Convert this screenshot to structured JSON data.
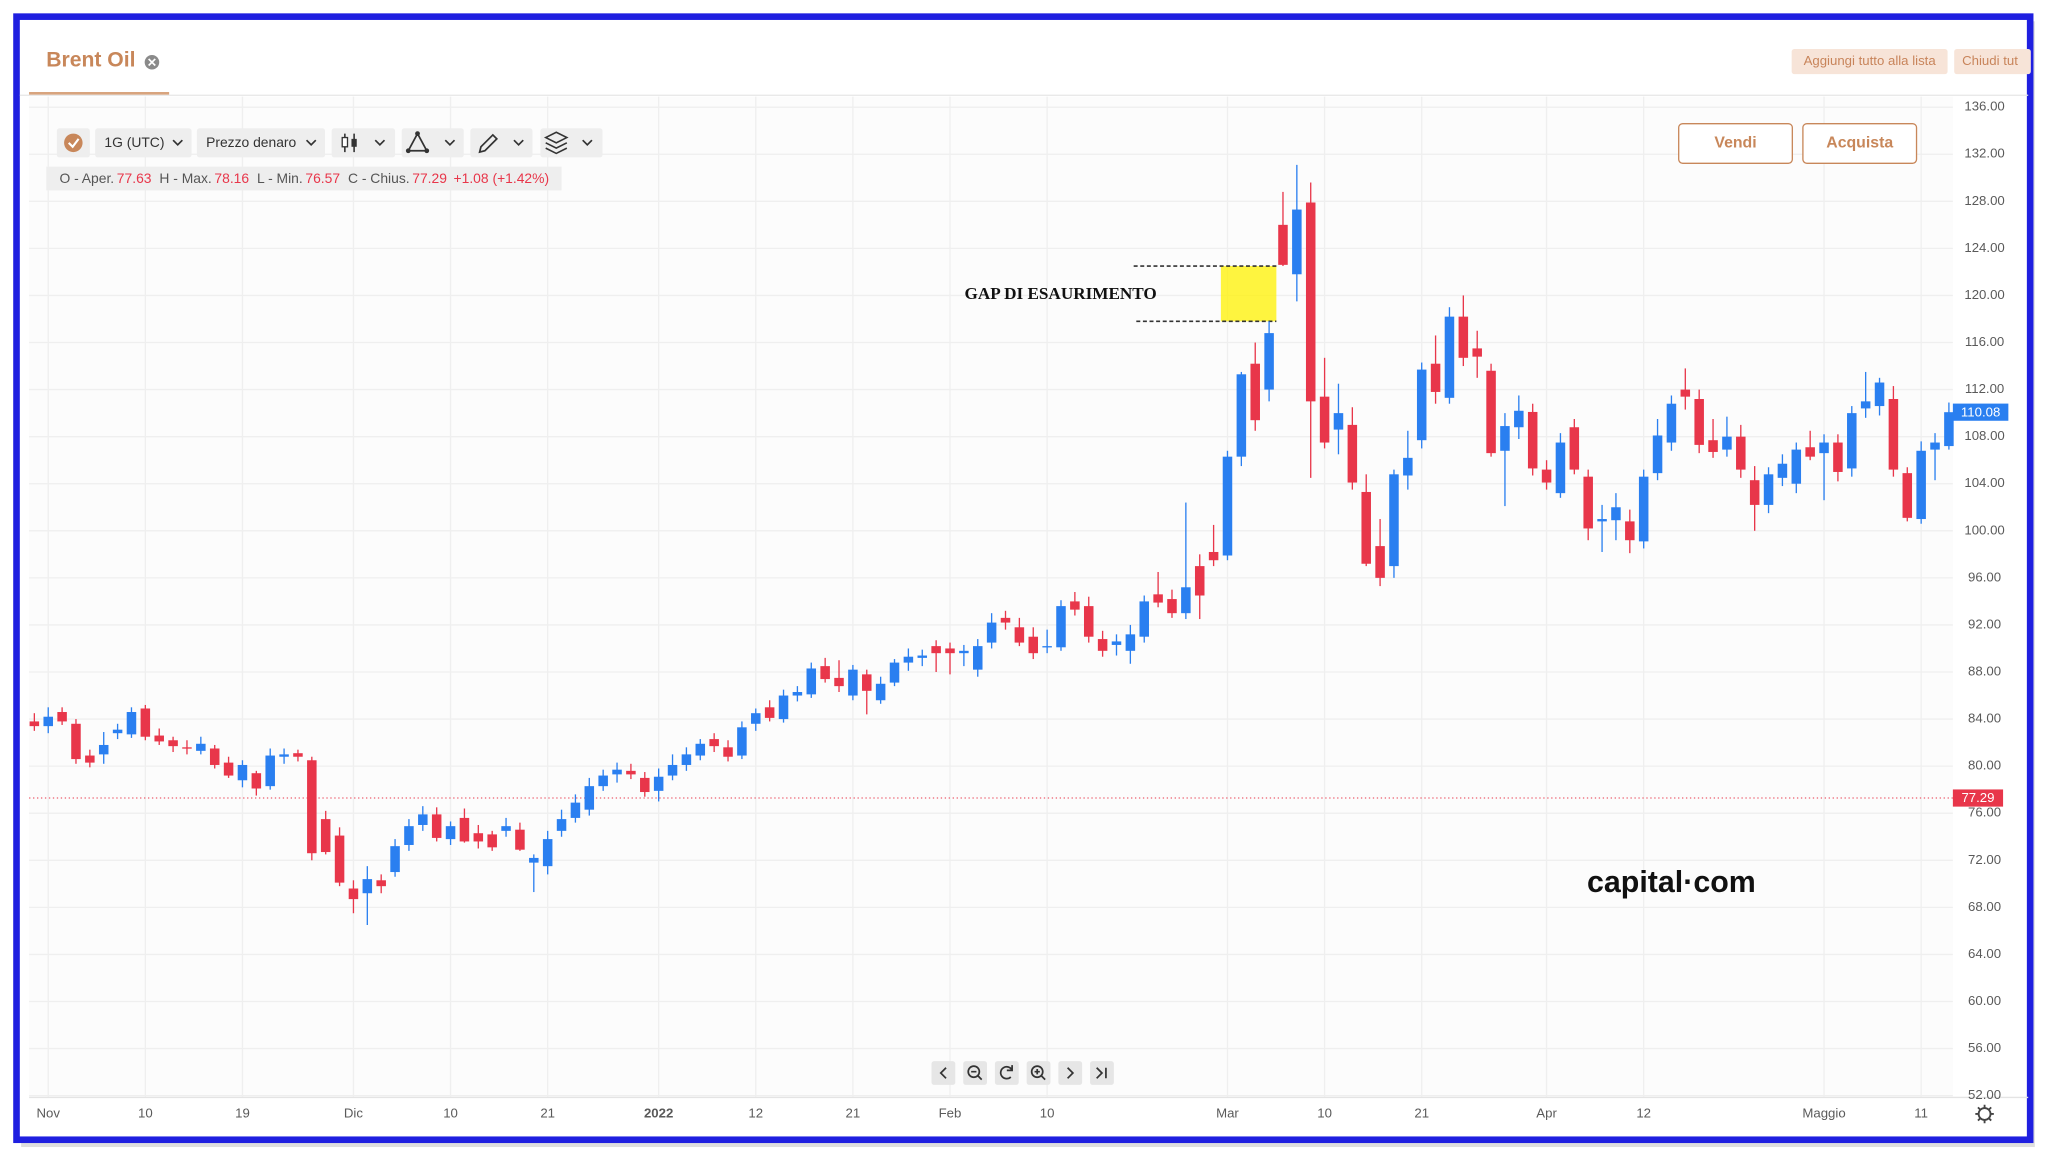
{
  "tab": {
    "title": "Brent Oil"
  },
  "top_buttons": [
    "Aggiungi tutto alla lista",
    "Chiudi tut"
  ],
  "toolbar": {
    "interval": "1G (UTC)",
    "price_type": "Prezzo denaro"
  },
  "ohlc_info": {
    "open_label": "O - Aper.",
    "open": "77.63",
    "high_label": "H - Max.",
    "high": "78.16",
    "low_label": "L - Min.",
    "low": "76.57",
    "close_label": "C - Chius.",
    "close": "77.29",
    "change": "+1.08 (+1.42%)"
  },
  "trade_buttons": {
    "sell": "Vendi",
    "buy": "Acquista"
  },
  "watermark": "capital·com",
  "chart_data": {
    "type": "candlestick",
    "up_color": "#2a7ff0",
    "down_color": "#e8364a",
    "grid": true,
    "ylim": [
      51.9,
      136.9
    ],
    "yticks": [
      {
        "value": 136,
        "label": "136.00"
      },
      {
        "value": 132,
        "label": "132.00"
      },
      {
        "value": 128,
        "label": "128.00"
      },
      {
        "value": 124,
        "label": "124.00"
      },
      {
        "value": 120,
        "label": "120.00"
      },
      {
        "value": 116,
        "label": "116.00"
      },
      {
        "value": 112,
        "label": "112.00"
      },
      {
        "value": 108,
        "label": "108.00"
      },
      {
        "value": 104,
        "label": "104.00"
      },
      {
        "value": 100,
        "label": "100.00"
      },
      {
        "value": 96,
        "label": "96.00"
      },
      {
        "value": 92,
        "label": "92.00"
      },
      {
        "value": 88,
        "label": "88.00"
      },
      {
        "value": 84,
        "label": "84.00"
      },
      {
        "value": 80,
        "label": "80.00"
      },
      {
        "value": 76,
        "label": "76.00"
      },
      {
        "value": 72,
        "label": "72.00"
      },
      {
        "value": 68,
        "label": "68.00"
      },
      {
        "value": 64,
        "label": "64.00"
      },
      {
        "value": 60,
        "label": "60.00"
      },
      {
        "value": 56,
        "label": "56.00"
      },
      {
        "value": 52,
        "label": "52.00"
      }
    ],
    "categories": [
      null,
      "Nov",
      null,
      null,
      null,
      null,
      null,
      null,
      "10",
      null,
      null,
      null,
      null,
      null,
      null,
      "19",
      null,
      null,
      null,
      null,
      null,
      null,
      null,
      "Dic",
      null,
      null,
      null,
      null,
      null,
      null,
      "10",
      null,
      null,
      null,
      null,
      null,
      null,
      "21",
      null,
      null,
      null,
      null,
      null,
      null,
      null,
      "2022",
      null,
      null,
      null,
      null,
      null,
      null,
      "12",
      null,
      null,
      null,
      null,
      null,
      null,
      "21",
      null,
      null,
      null,
      null,
      null,
      null,
      "Feb",
      null,
      null,
      null,
      null,
      null,
      null,
      "10",
      null,
      null,
      null,
      null,
      null,
      null,
      null,
      null,
      null,
      null,
      null,
      null,
      "Mar",
      null,
      null,
      null,
      null,
      null,
      null,
      "10",
      null,
      null,
      null,
      null,
      null,
      null,
      "21",
      null,
      null,
      null,
      null,
      null,
      null,
      null,
      null,
      "Apr",
      null,
      null,
      null,
      null,
      null,
      null,
      "12",
      null,
      null,
      null,
      null,
      null,
      null,
      null,
      null,
      null,
      null,
      null,
      null,
      "Maggio",
      null,
      null,
      null,
      null,
      null,
      null,
      "11",
      null,
      null
    ],
    "open": [
      83.8,
      83.4,
      84.6,
      83.6,
      80.9,
      81,
      82.8,
      82.7,
      84.9,
      82.6,
      82.2,
      81.6,
      81.3,
      81.5,
      80.3,
      78.8,
      79.4,
      78.3,
      80.8,
      81.1,
      80.5,
      75.5,
      74.1,
      69.6,
      69.2,
      70.3,
      71,
      73.3,
      75,
      75.9,
      73.8,
      75.6,
      74.3,
      74.2,
      74.5,
      74.6,
      71.8,
      71.5,
      74.5,
      75.6,
      76.3,
      78.3,
      79.3,
      79.6,
      79,
      77.9,
      79.2,
      80.1,
      80.9,
      82.3,
      81.6,
      80.9,
      83.6,
      85,
      84,
      86,
      86.1,
      88.5,
      87.5,
      86,
      87.8,
      85.6,
      87.1,
      88.8,
      89.2,
      90.2,
      90,
      89.6,
      88.2,
      90.5,
      92.6,
      91.8,
      91,
      90.2,
      90.1,
      94,
      93.6,
      90.8,
      90.3,
      89.8,
      91,
      94.6,
      94.2,
      93,
      97,
      98.2,
      97.9,
      106.3,
      114.2,
      112,
      126,
      121.8,
      127.9,
      111.4,
      108.6,
      109,
      103.3,
      98.7,
      97,
      104.7,
      107.7,
      114.2,
      111.3,
      118.2,
      115.5,
      113.6,
      106.8,
      108.8,
      110.1,
      105.2,
      103.2,
      108.8,
      104.6,
      100.8,
      100.9,
      100.8,
      99.1,
      104.9,
      107.5,
      112,
      111.2,
      107.7,
      106.9,
      108,
      104.3,
      102.2,
      104.5,
      104,
      107.1,
      106.6,
      107.5,
      105.3,
      110.4,
      110.6,
      111.2,
      104.9,
      101,
      106.9,
      107.2
    ],
    "high": [
      84.5,
      85,
      85,
      84,
      81.4,
      82.9,
      83.6,
      85,
      85.2,
      83.2,
      82.5,
      82.2,
      82.5,
      81.8,
      80.8,
      80.5,
      79.6,
      81.5,
      81.5,
      81.4,
      80.8,
      76.2,
      74.8,
      70.3,
      71.5,
      70.8,
      73.8,
      75.5,
      76.6,
      76.5,
      75.3,
      76.4,
      75,
      74.5,
      75.6,
      75.2,
      72.5,
      74.5,
      76.3,
      77.6,
      79,
      79.7,
      80.3,
      80.2,
      79.5,
      79.8,
      81,
      81.6,
      82.3,
      82.8,
      82.2,
      83.8,
      84.9,
      85.6,
      86.5,
      86.8,
      88.8,
      89.2,
      89,
      88.6,
      88.2,
      87.6,
      89.1,
      90,
      89.9,
      90.7,
      90.5,
      90.3,
      90.8,
      93,
      93.2,
      92.6,
      91.8,
      91.6,
      94.1,
      94.8,
      94.4,
      91.5,
      91.2,
      92,
      94.5,
      96.5,
      95,
      102.4,
      98,
      100.5,
      106.8,
      113.5,
      116,
      117.8,
      128.8,
      131.1,
      129.6,
      114.7,
      112.5,
      110.5,
      104.8,
      101,
      105.2,
      108.5,
      114.3,
      116.6,
      119,
      120,
      117,
      114.2,
      110,
      111.5,
      110.8,
      106,
      108.3,
      109.5,
      105.2,
      102.2,
      103.2,
      101.8,
      105.2,
      109.5,
      111.5,
      113.8,
      112,
      109.5,
      109.7,
      109,
      105.5,
      105.4,
      106.5,
      107.5,
      108.5,
      108.2,
      108.2,
      110.6,
      113.5,
      113,
      112.3,
      105.4,
      107.6,
      108.3,
      110.9
    ],
    "low": [
      83,
      82.8,
      83.5,
      80.2,
      79.9,
      80.2,
      82.3,
      82.4,
      82.2,
      81.8,
      81.2,
      81,
      81,
      79.8,
      79,
      78.2,
      77.5,
      78,
      80.2,
      80.4,
      72,
      72.5,
      69.8,
      67.5,
      66.5,
      69.2,
      70.6,
      72.8,
      74.5,
      73.6,
      73.3,
      73.5,
      73,
      72.8,
      74,
      72.8,
      69.3,
      70.8,
      74,
      75.2,
      75.8,
      77.9,
      78.6,
      78.9,
      77.4,
      77,
      78.8,
      79.6,
      80.5,
      81.2,
      80.4,
      80.6,
      83,
      83.8,
      83.7,
      85.5,
      85.8,
      87.1,
      86.3,
      85.6,
      84.4,
      85.3,
      86.8,
      88.1,
      88.5,
      88,
      87.8,
      88.5,
      87.6,
      90,
      91.6,
      90.2,
      89.1,
      89.6,
      89.8,
      92.8,
      90.5,
      89.3,
      89.4,
      88.7,
      90.5,
      93.5,
      92.6,
      92.5,
      92.5,
      97,
      97.5,
      105.5,
      108.5,
      111,
      122.5,
      119.5,
      104.5,
      107,
      106.5,
      103.5,
      97,
      95.3,
      96,
      103.5,
      107,
      110.8,
      110.8,
      114,
      113,
      106.3,
      102.1,
      107.8,
      104.7,
      103.5,
      102.8,
      104.8,
      99.2,
      98.2,
      99.2,
      98.1,
      98.5,
      104.3,
      106.8,
      110.3,
      106.6,
      106.2,
      106.3,
      104.5,
      100,
      101.5,
      103.8,
      103.2,
      106,
      102.6,
      104.2,
      104.6,
      109.6,
      109.8,
      104.6,
      100.8,
      100.6,
      104.3,
      106.9
    ],
    "close": [
      83.4,
      84.2,
      83.8,
      80.6,
      80.3,
      81.8,
      83.1,
      84.6,
      82.5,
      82.1,
      81.7,
      81.5,
      81.9,
      80.1,
      79.2,
      80.1,
      78.1,
      80.9,
      81,
      80.8,
      72.6,
      72.7,
      70.1,
      68.7,
      70.4,
      69.8,
      73.2,
      74.9,
      75.9,
      73.9,
      74.9,
      73.6,
      73.6,
      73.1,
      74.9,
      72.9,
      72.2,
      73.8,
      75.5,
      76.9,
      78.3,
      79.2,
      79.7,
      79.3,
      77.8,
      79.1,
      80.1,
      81,
      81.9,
      81.7,
      80.8,
      83.3,
      84.5,
      84.1,
      86,
      86.3,
      88.3,
      87.4,
      86.8,
      88.2,
      86.4,
      87,
      88.8,
      89.3,
      89.4,
      89.6,
      89.6,
      89.8,
      90.2,
      92.2,
      92.2,
      90.5,
      89.6,
      90.2,
      93.6,
      93.3,
      91,
      89.8,
      90.6,
      91.2,
      94,
      93.9,
      93,
      95.2,
      94.5,
      97.5,
      106.3,
      113.3,
      109.4,
      116.8,
      122.6,
      127.3,
      111,
      107.5,
      110,
      104.1,
      97.2,
      96,
      104.8,
      106.2,
      113.7,
      111.8,
      118.2,
      114.7,
      114.8,
      106.6,
      108.9,
      110.2,
      105.3,
      104.1,
      107.5,
      105.2,
      100.2,
      101,
      102,
      99.2,
      104.6,
      108.1,
      110.8,
      111.4,
      107.3,
      106.7,
      108,
      105.2,
      102.2,
      104.8,
      105.7,
      106.9,
      106.3,
      107.5,
      105,
      110,
      111,
      112.6,
      105.2,
      101.1,
      106.8,
      107.5,
      110.08
    ],
    "last_price": 110.08,
    "price_line": 77.29,
    "gap": {
      "label": "GAP DI ESAURIMENTO",
      "low": 117.8,
      "high": 122.5
    }
  }
}
